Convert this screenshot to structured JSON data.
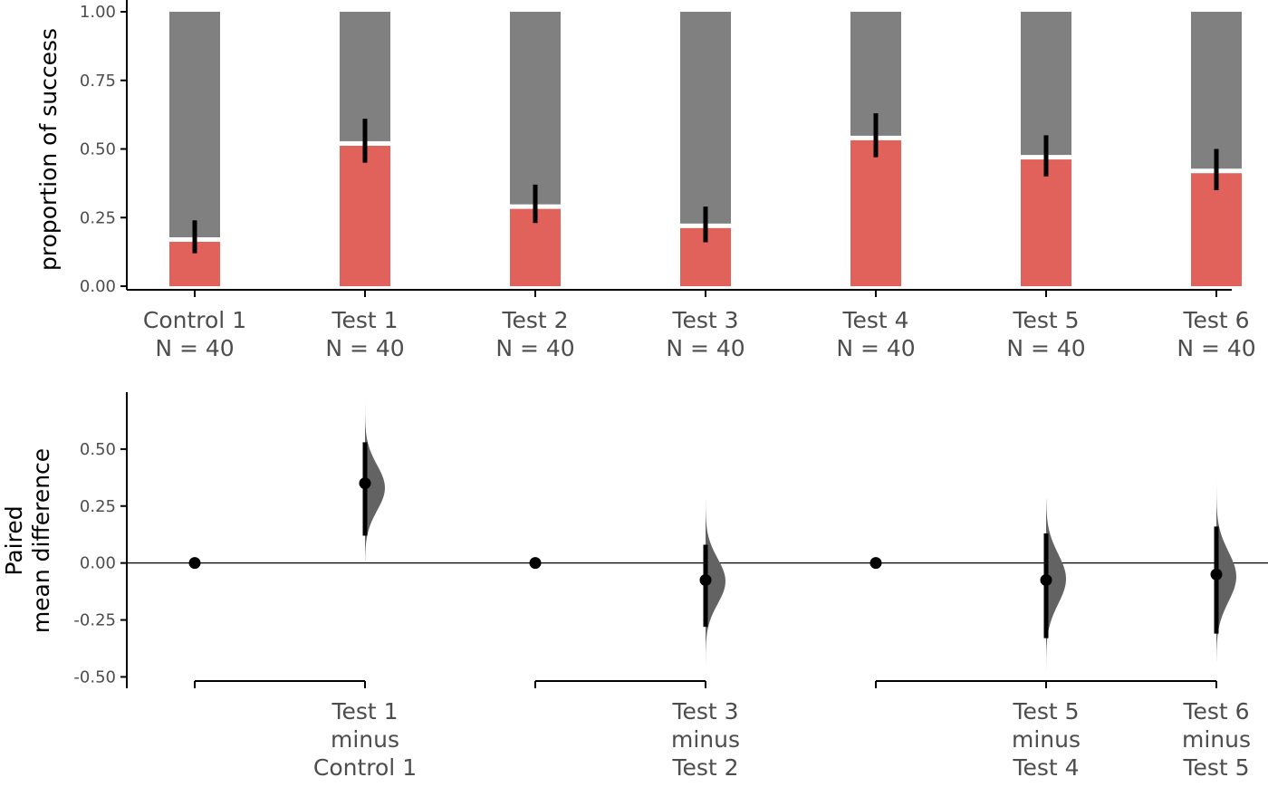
{
  "chart_data": [
    {
      "type": "bar",
      "ylabel": "proportion of success",
      "ylim": [
        0,
        1
      ],
      "yticks": [
        "0.00",
        "0.25",
        "0.50",
        "0.75",
        "1.00"
      ],
      "stacked": true,
      "grid": false,
      "colors": {
        "success": "#e0625a",
        "failure": "#808080",
        "separator": "#ffffff",
        "errorbar": "#000000"
      },
      "categories": [
        {
          "name": "Control 1",
          "n_label": "N = 40",
          "proportion": 0.17,
          "ci": [
            0.12,
            0.24
          ]
        },
        {
          "name": "Test 1",
          "n_label": "N = 40",
          "proportion": 0.52,
          "ci": [
            0.45,
            0.61
          ]
        },
        {
          "name": "Test 2",
          "n_label": "N = 40",
          "proportion": 0.29,
          "ci": [
            0.23,
            0.37
          ]
        },
        {
          "name": "Test 3",
          "n_label": "N = 40",
          "proportion": 0.22,
          "ci": [
            0.16,
            0.29
          ]
        },
        {
          "name": "Test 4",
          "n_label": "N = 40",
          "proportion": 0.54,
          "ci": [
            0.47,
            0.63
          ]
        },
        {
          "name": "Test 5",
          "n_label": "N = 40",
          "proportion": 0.47,
          "ci": [
            0.4,
            0.55
          ]
        },
        {
          "name": "Test 6",
          "n_label": "N = 40",
          "proportion": 0.42,
          "ci": [
            0.35,
            0.5
          ]
        }
      ]
    },
    {
      "type": "scatter",
      "ylabel": [
        "Paired",
        "mean difference"
      ],
      "ylim": [
        -0.55,
        0.75
      ],
      "yticks": [
        "-0.50",
        "-0.25",
        "0.00",
        "0.25",
        "0.50"
      ],
      "zero_line": true,
      "grid": false,
      "colors": {
        "point": "#000000",
        "distribution": "#636363"
      },
      "reference_points": [
        {
          "category_index": 0,
          "value": 0.0
        },
        {
          "category_index": 2,
          "value": 0.0
        },
        {
          "category_index": 4,
          "value": 0.0
        }
      ],
      "comparisons": [
        {
          "category_index": 1,
          "label": [
            "Test 1",
            "minus",
            "Control 1"
          ],
          "mean": 0.35,
          "ci": [
            0.12,
            0.53
          ],
          "dist_range": [
            0.0,
            0.72
          ],
          "dist_peak": 0.33,
          "dist_spread": 0.1
        },
        {
          "category_index": 3,
          "label": [
            "Test 3",
            "minus",
            "Test 2"
          ],
          "mean": -0.075,
          "ci": [
            -0.28,
            0.08
          ],
          "dist_range": [
            -0.45,
            0.3
          ],
          "dist_peak": -0.08,
          "dist_spread": 0.1
        },
        {
          "category_index": 5,
          "label": [
            "Test 5",
            "minus",
            "Test 4"
          ],
          "mean": -0.075,
          "ci": [
            -0.33,
            0.13
          ],
          "dist_range": [
            -0.48,
            0.28
          ],
          "dist_peak": -0.07,
          "dist_spread": 0.11
        },
        {
          "category_index": 6,
          "label": [
            "Test 6",
            "minus",
            "Test 5"
          ],
          "mean": -0.05,
          "ci": [
            -0.31,
            0.16
          ],
          "dist_range": [
            -0.43,
            0.41
          ],
          "dist_peak": -0.06,
          "dist_spread": 0.11
        }
      ],
      "groups": [
        [
          0,
          1
        ],
        [
          2,
          3
        ],
        [
          4,
          6
        ]
      ]
    }
  ]
}
